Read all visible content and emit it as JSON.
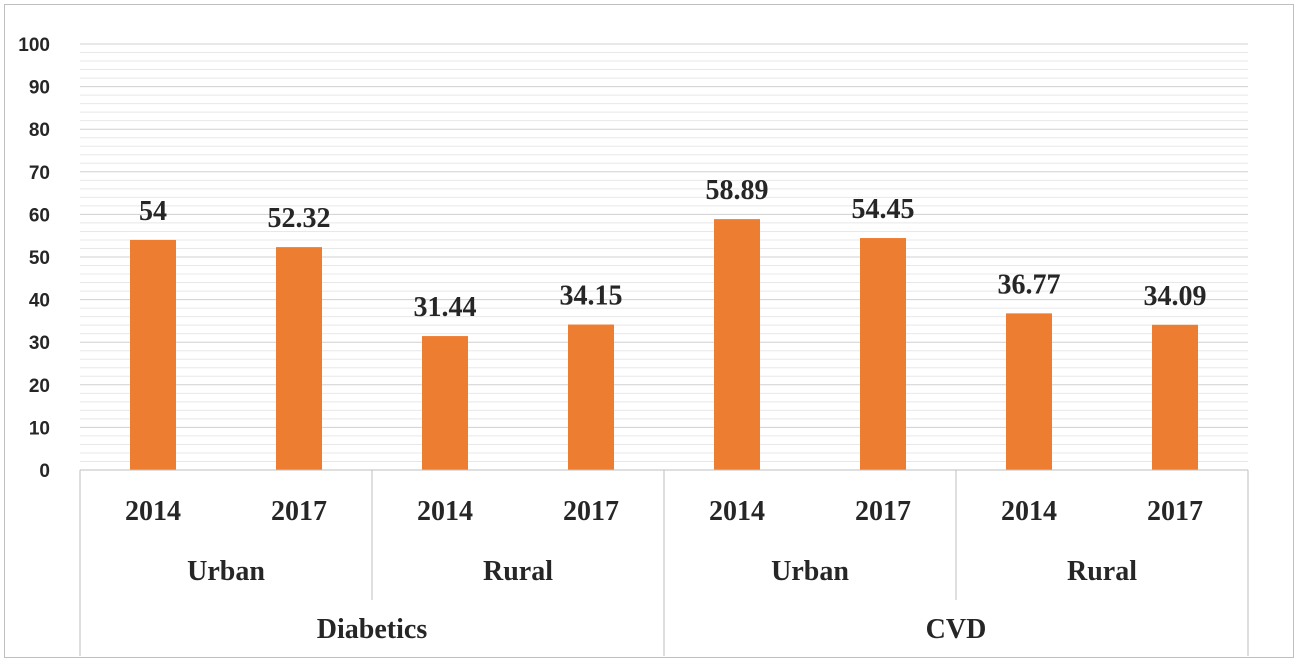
{
  "chart_data": {
    "type": "bar",
    "title": "",
    "xlabel": "",
    "ylabel": "",
    "ylim": [
      0,
      100
    ],
    "yticks": [
      0,
      10,
      20,
      30,
      40,
      50,
      60,
      70,
      80,
      90,
      100
    ],
    "grid": true,
    "legend": "none",
    "bar_color": "#ed7d31",
    "groups": [
      {
        "name": "Diabetics",
        "subgroups": [
          {
            "name": "Urban",
            "categories": [
              "2014",
              "2017"
            ],
            "values": [
              54,
              52.32
            ],
            "labels": [
              "54",
              "52.32"
            ]
          },
          {
            "name": "Rural",
            "categories": [
              "2014",
              "2017"
            ],
            "values": [
              31.44,
              34.15
            ],
            "labels": [
              "31.44",
              "34.15"
            ]
          }
        ]
      },
      {
        "name": "CVD",
        "subgroups": [
          {
            "name": "Urban",
            "categories": [
              "2014",
              "2017"
            ],
            "values": [
              58.89,
              54.45
            ],
            "labels": [
              "58.89",
              "54.45"
            ]
          },
          {
            "name": "Rural",
            "categories": [
              "2014",
              "2017"
            ],
            "values": [
              36.77,
              34.09
            ],
            "labels": [
              "36.77",
              "34.09"
            ]
          }
        ]
      }
    ]
  }
}
